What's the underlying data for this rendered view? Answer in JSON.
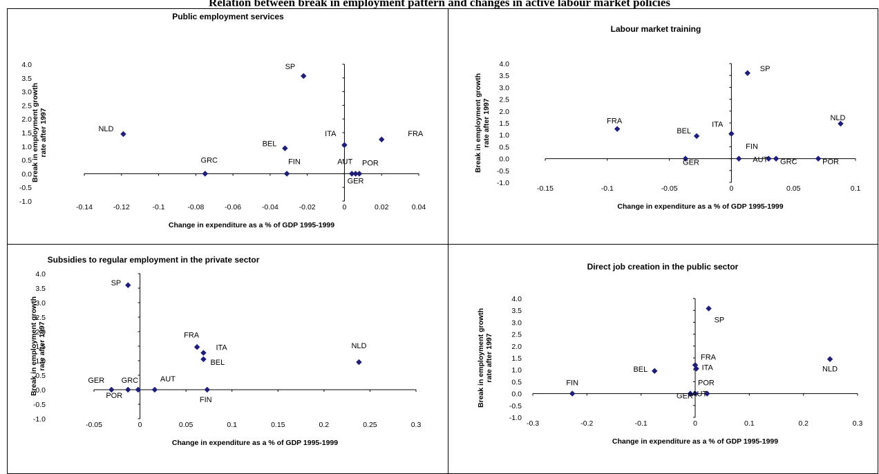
{
  "main_title": "Relation between break in employment pattern and changes in active labour market policies",
  "colors": {
    "marker": "#1f1f7a",
    "axis": "#000000"
  },
  "chart_data": [
    {
      "type": "scatter",
      "title": "Public employment services",
      "xlabel": "Change in expenditure as a % of GDP  1995-1999",
      "ylabel": [
        "Break in employment growth",
        "rate after 1997"
      ],
      "xlim": [
        -0.14,
        0.04
      ],
      "ylim": [
        -1.0,
        4.0
      ],
      "xticks": [
        "-0.14",
        "-0.12",
        "-0.1",
        "-0.08",
        "-0.06",
        "-0.04",
        "-0.02",
        "0",
        "0.02",
        "0.04"
      ],
      "yticks": [
        "-1.0",
        "-0.5",
        "0.0",
        "0.5",
        "1.0",
        "1.5",
        "2.0",
        "2.5",
        "3.0",
        "3.5",
        "4.0"
      ],
      "points": [
        {
          "label": "NLD",
          "x": -0.119,
          "y": 1.45
        },
        {
          "label": "SP",
          "x": -0.022,
          "y": 3.57
        },
        {
          "label": "GRC",
          "x": -0.075,
          "y": 0.0
        },
        {
          "label": "BEL",
          "x": -0.032,
          "y": 0.93
        },
        {
          "label": "FIN",
          "x": -0.031,
          "y": 0.0
        },
        {
          "label": "ITA",
          "x": 0.0,
          "y": 1.05
        },
        {
          "label": "FRA",
          "x": 0.02,
          "y": 1.25
        },
        {
          "label": "AUT",
          "x": 0.004,
          "y": 0.0
        },
        {
          "label": "POR",
          "x": 0.008,
          "y": 0.0
        },
        {
          "label": "GER",
          "x": 0.006,
          "y": 0.0
        }
      ]
    },
    {
      "type": "scatter",
      "title": "Labour market training",
      "xlabel": "Change in expenditure as a % of GDP  1995-1999",
      "ylabel": [
        "Break in employment growth",
        "rate after 1997"
      ],
      "xlim": [
        -0.15,
        0.1
      ],
      "ylim": [
        -1.0,
        4.0
      ],
      "xticks": [
        "-0.15",
        "-0.1",
        "-0.05",
        "0",
        "0.05",
        "0.1"
      ],
      "yticks": [
        "-1.0",
        "-0.5",
        "0.0",
        "0.5",
        "1.0",
        "1.5",
        "2.0",
        "2.5",
        "3.0",
        "3.5",
        "4.0"
      ],
      "points": [
        {
          "label": "FRA",
          "x": -0.092,
          "y": 1.25
        },
        {
          "label": "BEL",
          "x": -0.028,
          "y": 0.95
        },
        {
          "label": "GER",
          "x": -0.037,
          "y": 0.0
        },
        {
          "label": "ITA",
          "x": 0.0,
          "y": 1.05
        },
        {
          "label": "FIN",
          "x": 0.006,
          "y": 0.0
        },
        {
          "label": "SP",
          "x": 0.013,
          "y": 3.6
        },
        {
          "label": "AUT",
          "x": 0.03,
          "y": 0.0
        },
        {
          "label": "GRC",
          "x": 0.036,
          "y": 0.0
        },
        {
          "label": "POR",
          "x": 0.07,
          "y": 0.0
        },
        {
          "label": "NLD",
          "x": 0.088,
          "y": 1.47
        }
      ]
    },
    {
      "type": "scatter",
      "title": "Subsidies to regular employment in the private sector",
      "xlabel": "Change in expenditure as a % of GDP  1995-1999",
      "ylabel": [
        "Break in employment growth",
        "rate after 1997"
      ],
      "xlim": [
        -0.05,
        0.3
      ],
      "ylim": [
        -1.0,
        4.0
      ],
      "xticks": [
        "-0.05",
        "0",
        "0.05",
        "0.1",
        "0.15",
        "0.2",
        "0.25",
        "0.3"
      ],
      "yticks": [
        "-1.0",
        "-0.5",
        "0.0",
        "0.5",
        "1.0",
        "1.5",
        "2.0",
        "2.5",
        "3.0",
        "3.5",
        "4.0"
      ],
      "points": [
        {
          "label": "SP",
          "x": -0.013,
          "y": 3.6
        },
        {
          "label": "GER",
          "x": -0.031,
          "y": 0.0
        },
        {
          "label": "POR",
          "x": -0.013,
          "y": 0.0
        },
        {
          "label": "GRC",
          "x": -0.002,
          "y": 0.0
        },
        {
          "label": "AUT",
          "x": 0.016,
          "y": 0.0
        },
        {
          "label": "FRA",
          "x": 0.062,
          "y": 1.47
        },
        {
          "label": "ITA",
          "x": 0.069,
          "y": 1.27
        },
        {
          "label": "BEL",
          "x": 0.069,
          "y": 1.05
        },
        {
          "label": "FIN",
          "x": 0.073,
          "y": 0.0
        },
        {
          "label": "NLD",
          "x": 0.238,
          "y": 0.95
        }
      ]
    },
    {
      "type": "scatter",
      "title": "Direct job creation in the public sector",
      "xlabel": "Change in expenditure as a % of GDP  1995-1999",
      "ylabel": [
        "Break in employment growth",
        "rate after 1997"
      ],
      "xlim": [
        -0.3,
        0.3
      ],
      "ylim": [
        -1.0,
        4.0
      ],
      "xticks": [
        "-0.3",
        "-0.2",
        "-0.1",
        "0",
        "0.1",
        "0.2",
        "0.3"
      ],
      "yticks": [
        "-1.0",
        "-0.5",
        "0.0",
        "0.5",
        "1.0",
        "1.5",
        "2.0",
        "2.5",
        "3.0",
        "3.5",
        "4.0"
      ],
      "points": [
        {
          "label": "FIN",
          "x": -0.227,
          "y": 0.0
        },
        {
          "label": "BEL",
          "x": -0.075,
          "y": 0.95
        },
        {
          "label": "GER",
          "x": -0.009,
          "y": 0.0
        },
        {
          "label": "SP",
          "x": 0.025,
          "y": 3.58
        },
        {
          "label": "FRA",
          "x": 0.0,
          "y": 1.2
        },
        {
          "label": "ITA",
          "x": 0.002,
          "y": 1.05
        },
        {
          "label": "POR",
          "x": 0.0,
          "y": 0.0
        },
        {
          "label": "AUT",
          "x": 0.022,
          "y": 0.0
        },
        {
          "label": "NLD",
          "x": 0.249,
          "y": 1.45
        }
      ]
    }
  ]
}
